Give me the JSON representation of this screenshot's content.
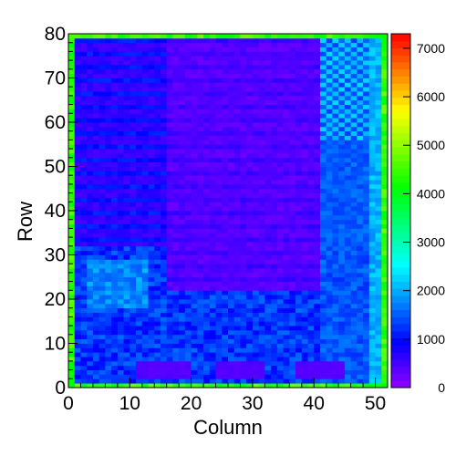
{
  "chart_data": {
    "type": "heatmap",
    "title": "",
    "xlabel": "Column",
    "ylabel": "Row",
    "xlim": [
      0,
      52
    ],
    "ylim": [
      0,
      80
    ],
    "x_ticks": [
      "0",
      "10",
      "20",
      "30",
      "40",
      "50"
    ],
    "y_ticks": [
      "0",
      "10",
      "20",
      "30",
      "40",
      "50",
      "60",
      "70",
      "80"
    ],
    "colorbar": {
      "range": [
        0,
        7300
      ],
      "ticks": [
        "0",
        "1000",
        "2000",
        "3000",
        "4000",
        "5000",
        "6000",
        "7000"
      ],
      "palette": "rainbow (violet → blue → cyan → green → yellow → red)"
    },
    "value_regions": [
      {
        "region": "columns 0-51, rows 0-79 (border pixels)",
        "approx_value": 4300
      },
      {
        "region": "columns 16-40, rows 22-79 (upper-middle block)",
        "approx_value": 350
      },
      {
        "region": "columns 0-15, rows 32-79 (upper-left striped block)",
        "approx_value": 700
      },
      {
        "region": "columns 41-48, rows 0-79 (right band)",
        "approx_value": 1700
      },
      {
        "region": "columns 49-50, rows 0-79 (right edge band)",
        "approx_value": 2000
      },
      {
        "region": "columns 0-51, rows 0-31 (lower area)",
        "approx_value": 1300
      },
      {
        "region": "columns 11-19, 24-31, 37-44, rows 2-5 (lower rectangles)",
        "approx_value": 400
      }
    ]
  }
}
